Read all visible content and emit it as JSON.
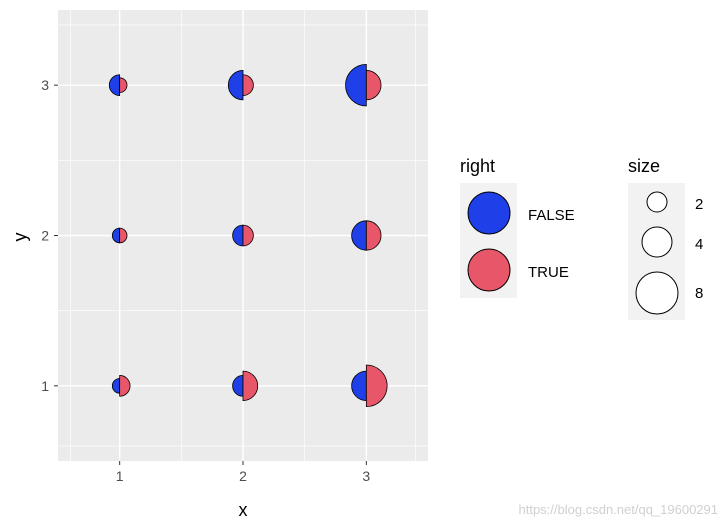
{
  "chart_data": {
    "type": "scatter",
    "xlabel": "x",
    "ylabel": "y",
    "x_ticks": [
      "1",
      "2",
      "3"
    ],
    "y_ticks": [
      "1",
      "2",
      "3"
    ],
    "xlim": [
      0.5,
      3.5
    ],
    "ylim": [
      0.5,
      3.5
    ],
    "grid": true,
    "points": [
      {
        "x": 1,
        "y": 1,
        "size_left": 2,
        "size_right": 4
      },
      {
        "x": 1,
        "y": 2,
        "size_left": 2,
        "size_right": 2
      },
      {
        "x": 1,
        "y": 3,
        "size_left": 4,
        "size_right": 2
      },
      {
        "x": 2,
        "y": 1,
        "size_left": 4,
        "size_right": 8
      },
      {
        "x": 2,
        "y": 2,
        "size_left": 4,
        "size_right": 4
      },
      {
        "x": 2,
        "y": 3,
        "size_left": 8,
        "size_right": 4
      },
      {
        "x": 3,
        "y": 1,
        "size_left": 8,
        "size_right": 16
      },
      {
        "x": 3,
        "y": 2,
        "size_left": 8,
        "size_right": 8
      },
      {
        "x": 3,
        "y": 3,
        "size_left": 16,
        "size_right": 8
      }
    ],
    "legend_fill": {
      "title": "right",
      "entries": [
        {
          "label": "FALSE",
          "color": "#1f3fe8"
        },
        {
          "label": "TRUE",
          "color": "#e8566a"
        }
      ]
    },
    "legend_size": {
      "title": "size",
      "entries": [
        {
          "label": "2",
          "value": 2
        },
        {
          "label": "4",
          "value": 4
        },
        {
          "label": "8",
          "value": 8
        }
      ]
    },
    "legend_placement": "right"
  },
  "watermark": "https://blog.csdn.net/qq_19600291",
  "colors": {
    "panel_bg": "#ebebeb",
    "grid": "#ffffff",
    "left_half": "#1f3fe8",
    "right_half": "#e8566a",
    "outline": "#000000",
    "text": "#4d4d4d"
  }
}
